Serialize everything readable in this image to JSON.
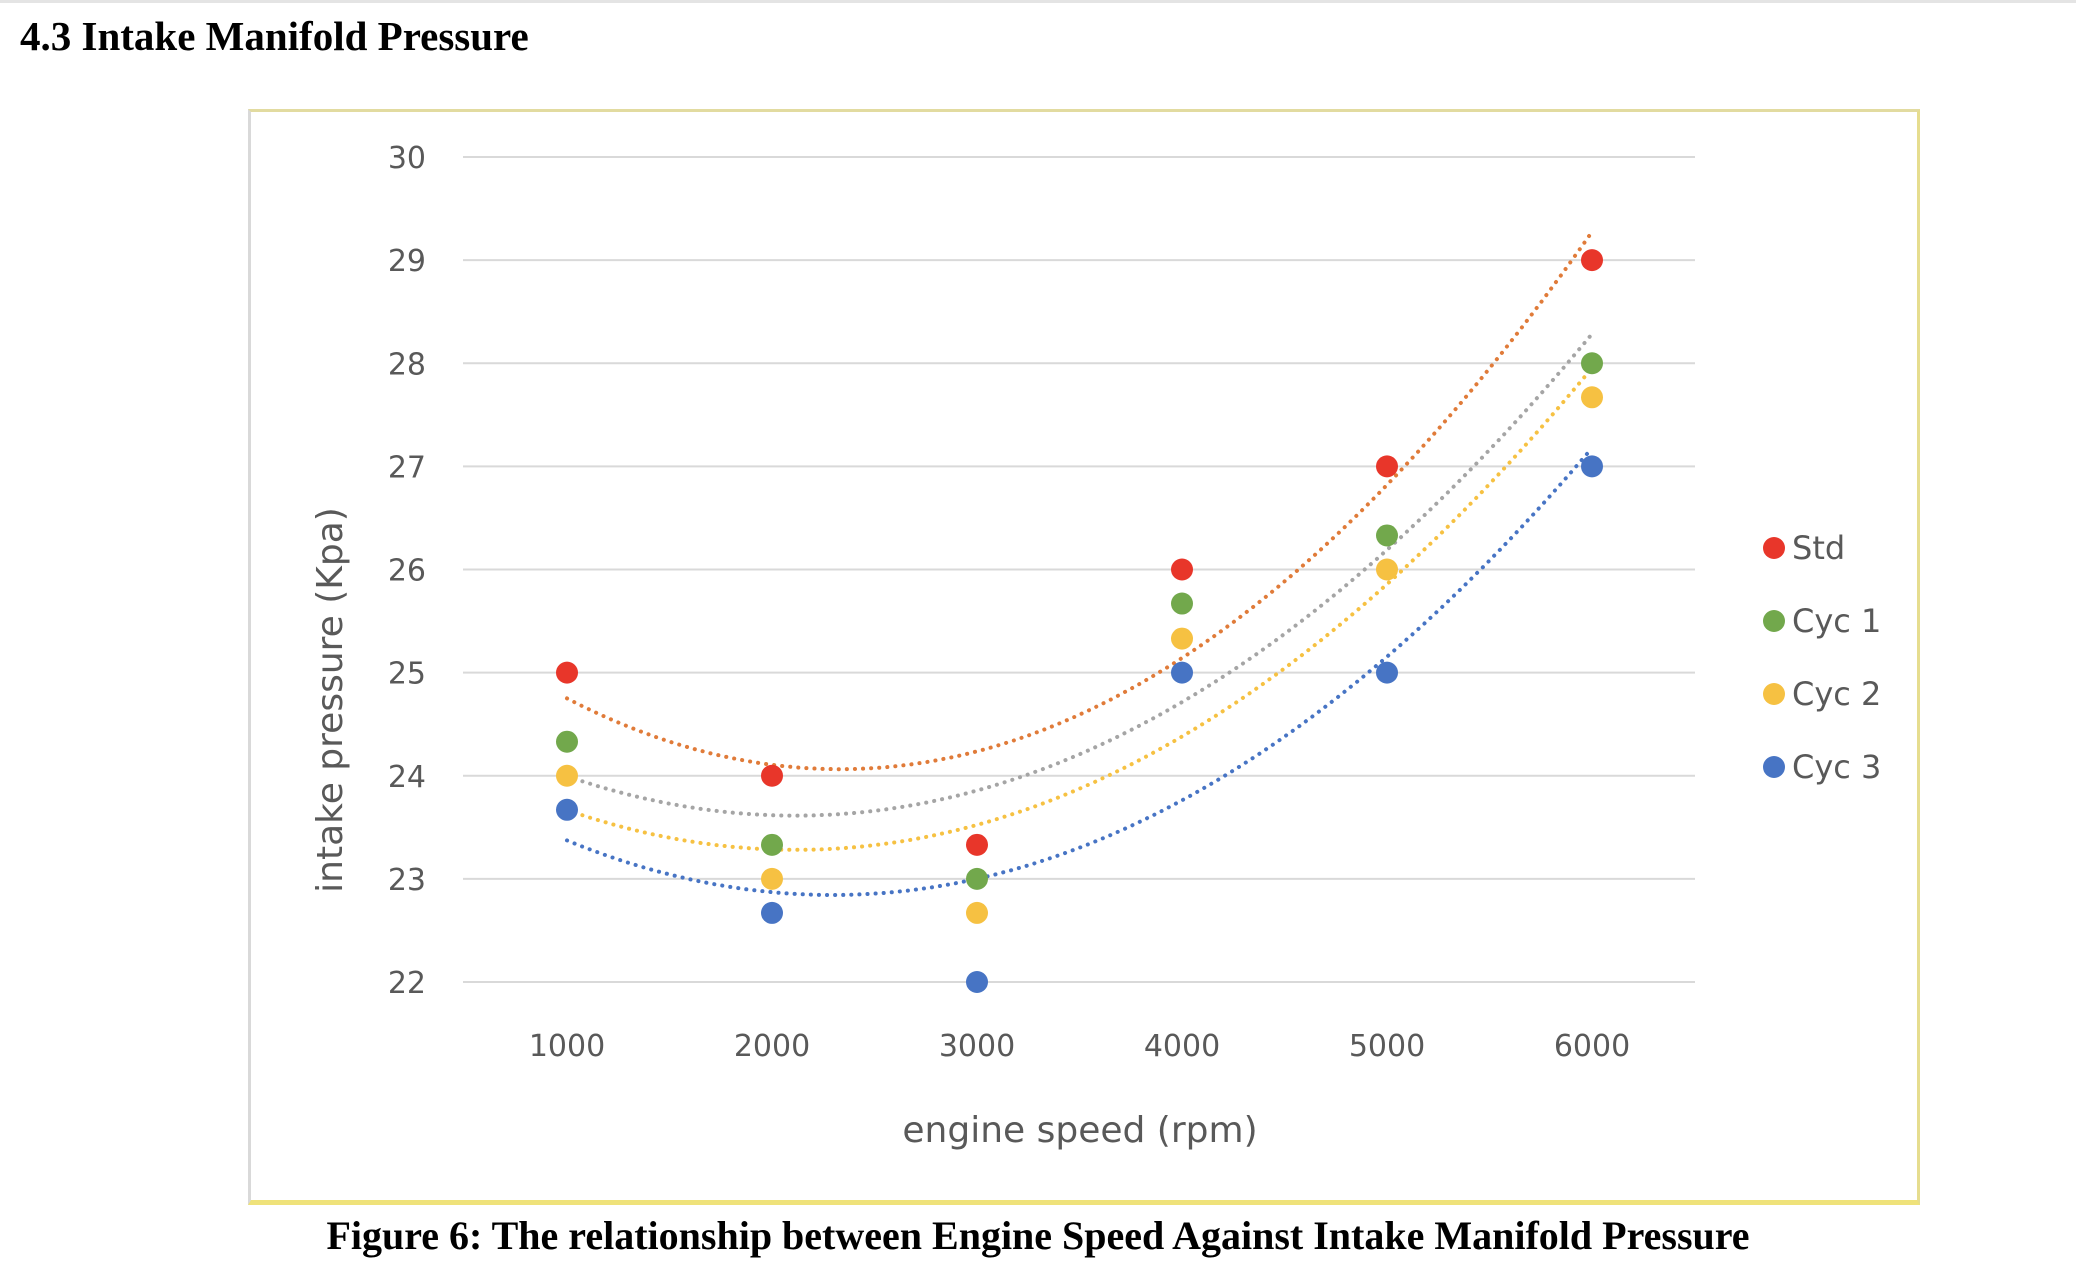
{
  "heading": "4.3 Intake Manifold Pressure",
  "caption": "Figure 6: The relationship between Engine Speed Against Intake Manifold Pressure",
  "chart_data": {
    "type": "scatter",
    "title": "",
    "xlabel": "engine speed (rpm)",
    "ylabel": "intake pressure (Kpa)",
    "x": [
      1000,
      2000,
      3000,
      4000,
      5000,
      6000
    ],
    "x_tick_labels": [
      "1000",
      "2000",
      "3000",
      "4000",
      "5000",
      "6000"
    ],
    "ylim": [
      22,
      30
    ],
    "y_ticks": [
      22,
      23,
      24,
      25,
      26,
      27,
      28,
      29,
      30
    ],
    "grid": true,
    "legend_position": "right",
    "trendline": "polynomial order 2 (dotted)",
    "series": [
      {
        "name": "Std",
        "color": "#e8362a",
        "trend_color": "#e07b39",
        "values": [
          25,
          24,
          23.33,
          26,
          27,
          29
        ]
      },
      {
        "name": "Cyc 1",
        "color": "#72a84c",
        "trend_color": "#a5a5a5",
        "values": [
          24.33,
          23.33,
          23,
          25.67,
          26.33,
          28
        ]
      },
      {
        "name": "Cyc 2",
        "color": "#f6c142",
        "trend_color": "#f6c142",
        "values": [
          24,
          23,
          22.67,
          25.33,
          26,
          27.67
        ]
      },
      {
        "name": "Cyc 3",
        "color": "#4774c4",
        "trend_color": "#4774c4",
        "values": [
          23.67,
          22.67,
          22,
          25,
          25,
          27
        ]
      }
    ]
  }
}
